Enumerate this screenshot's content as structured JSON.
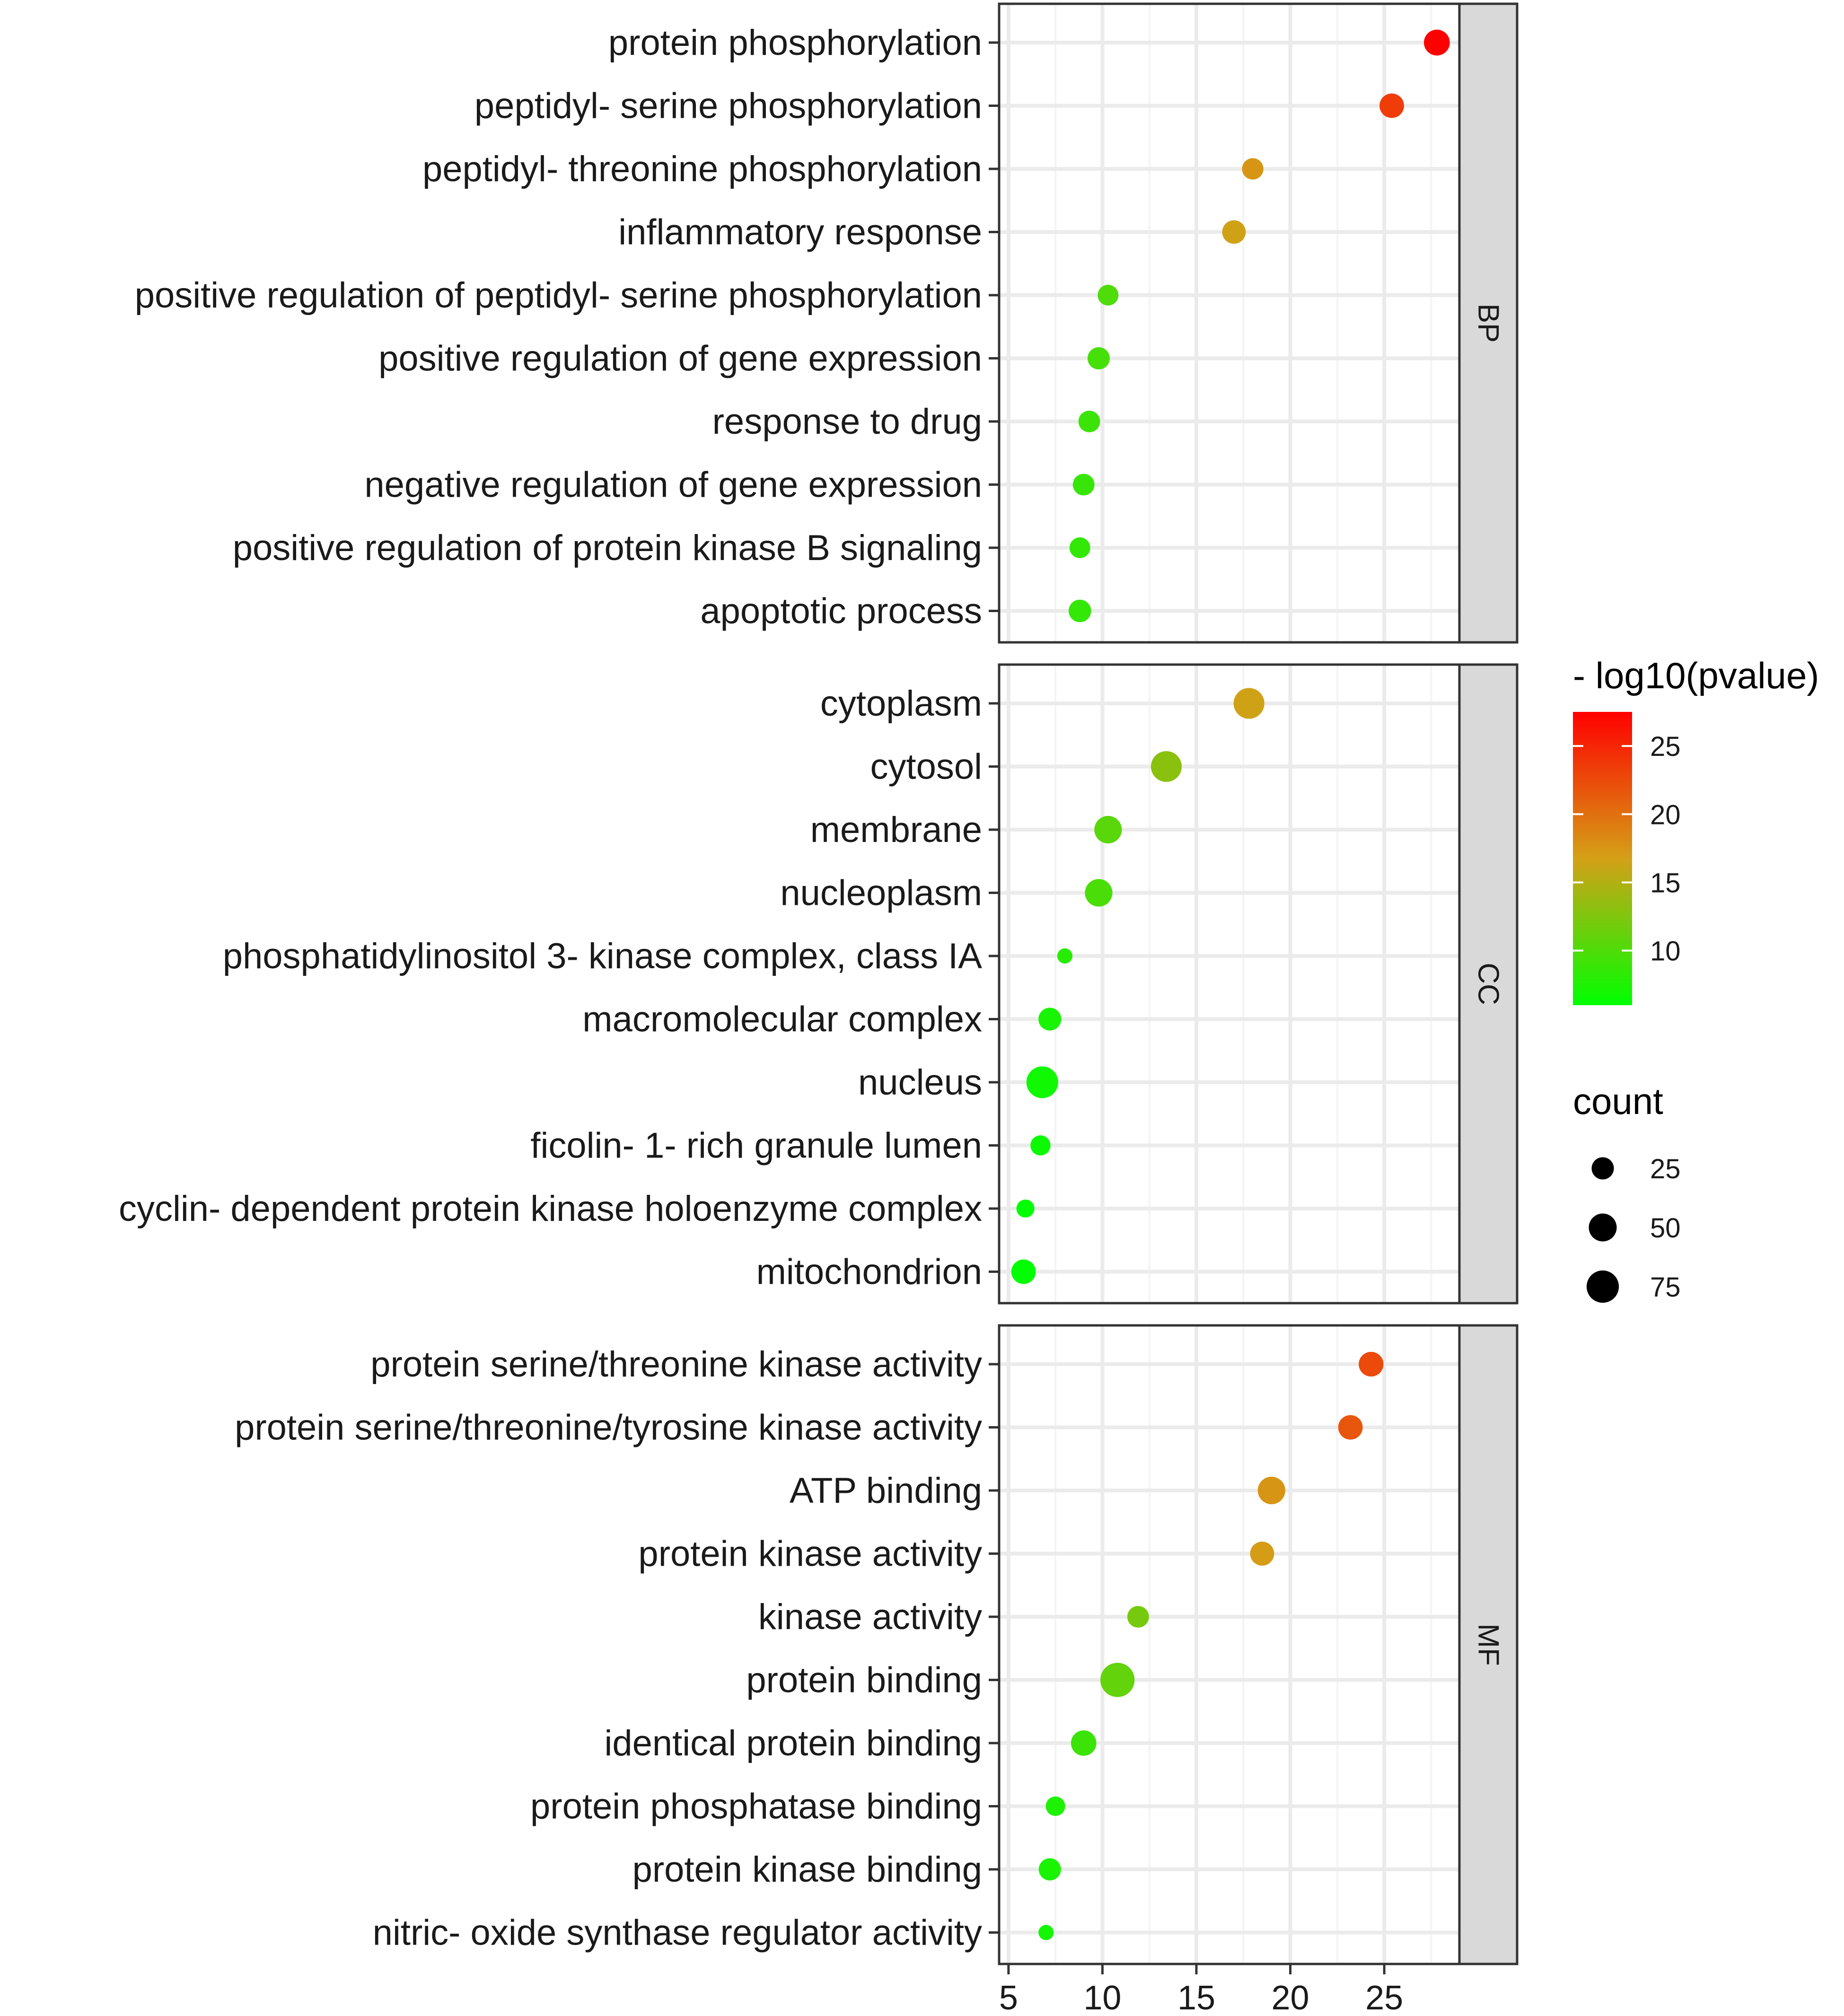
{
  "chart_data": {
    "type": "scatter",
    "subtype": "faceted dot plot",
    "xlabel": "",
    "ylabel": "",
    "x_ticks": [
      5,
      10,
      15,
      20,
      25
    ],
    "xlim": [
      4.5,
      29.0
    ],
    "color_scale": {
      "title": "- log10(pvalue)",
      "min": 6.0,
      "max": 27.5,
      "colors": [
        "#00ff00",
        "#d4a017",
        "#ff0000"
      ],
      "ticks": [
        10,
        15,
        20,
        25
      ]
    },
    "size_legend": {
      "title": "count",
      "values": [
        25,
        50,
        75
      ]
    },
    "facets": [
      {
        "name": "BP",
        "items": [
          {
            "term": "protein phosphorylation",
            "x": 27.8,
            "count": 40,
            "neglog10p": 27.5
          },
          {
            "term": "peptidyl- serine phosphorylation",
            "x": 25.4,
            "count": 34,
            "neglog10p": 23.5
          },
          {
            "term": "peptidyl- threonine phosphorylation",
            "x": 18.0,
            "count": 22,
            "neglog10p": 17.5
          },
          {
            "term": "inflammatory response",
            "x": 17.0,
            "count": 30,
            "neglog10p": 16.5
          },
          {
            "term": "positive regulation of peptidyl- serine phosphorylation",
            "x": 10.3,
            "count": 20,
            "neglog10p": 10.0
          },
          {
            "term": "positive regulation of gene expression",
            "x": 9.8,
            "count": 25,
            "neglog10p": 9.5
          },
          {
            "term": "response to drug",
            "x": 9.3,
            "count": 23,
            "neglog10p": 9.0
          },
          {
            "term": "negative regulation of gene expression",
            "x": 9.0,
            "count": 23,
            "neglog10p": 8.8
          },
          {
            "term": "positive regulation of protein kinase B signaling",
            "x": 8.8,
            "count": 20,
            "neglog10p": 8.6
          },
          {
            "term": "apoptotic process",
            "x": 8.8,
            "count": 26,
            "neglog10p": 8.6
          }
        ]
      },
      {
        "name": "CC",
        "items": [
          {
            "term": "cytoplasm",
            "x": 17.8,
            "count": 66,
            "neglog10p": 16.5
          },
          {
            "term": "cytosol",
            "x": 13.4,
            "count": 66,
            "neglog10p": 13.0
          },
          {
            "term": "membrane",
            "x": 10.3,
            "count": 48,
            "neglog10p": 10.5
          },
          {
            "term": "nucleoplasm",
            "x": 9.8,
            "count": 48,
            "neglog10p": 9.8
          },
          {
            "term": "phosphatidylinositol 3- kinase complex, class IA",
            "x": 8.0,
            "count": 6,
            "neglog10p": 8.0
          },
          {
            "term": "macromolecular complex",
            "x": 7.2,
            "count": 27,
            "neglog10p": 7.2
          },
          {
            "term": "nucleus",
            "x": 6.8,
            "count": 72,
            "neglog10p": 6.8
          },
          {
            "term": "ficolin- 1- rich granule lumen",
            "x": 6.7,
            "count": 18,
            "neglog10p": 6.6
          },
          {
            "term": "cyclin- dependent protein kinase holoenzyme complex",
            "x": 5.9,
            "count": 12,
            "neglog10p": 6.0
          },
          {
            "term": "mitochondrion",
            "x": 5.8,
            "count": 34,
            "neglog10p": 6.0
          }
        ]
      },
      {
        "name": "MF",
        "items": [
          {
            "term": "protein serine/threonine kinase activity",
            "x": 24.3,
            "count": 35,
            "neglog10p": 22.5
          },
          {
            "term": "protein serine/threonine/tyrosine kinase activity",
            "x": 23.2,
            "count": 34,
            "neglog10p": 21.8
          },
          {
            "term": "ATP binding",
            "x": 19.0,
            "count": 48,
            "neglog10p": 17.5
          },
          {
            "term": "protein kinase activity",
            "x": 18.5,
            "count": 32,
            "neglog10p": 17.0
          },
          {
            "term": "kinase activity",
            "x": 11.9,
            "count": 23,
            "neglog10p": 12.0
          },
          {
            "term": "protein binding",
            "x": 10.8,
            "count": 88,
            "neglog10p": 11.0
          },
          {
            "term": "identical protein binding",
            "x": 9.0,
            "count": 38,
            "neglog10p": 9.0
          },
          {
            "term": "protein phosphatase binding",
            "x": 7.5,
            "count": 16,
            "neglog10p": 7.5
          },
          {
            "term": "protein kinase binding",
            "x": 7.2,
            "count": 25,
            "neglog10p": 7.3
          },
          {
            "term": "nitric- oxide synthase regulator activity",
            "x": 7.0,
            "count": 6,
            "neglog10p": 7.0
          }
        ]
      }
    ]
  }
}
